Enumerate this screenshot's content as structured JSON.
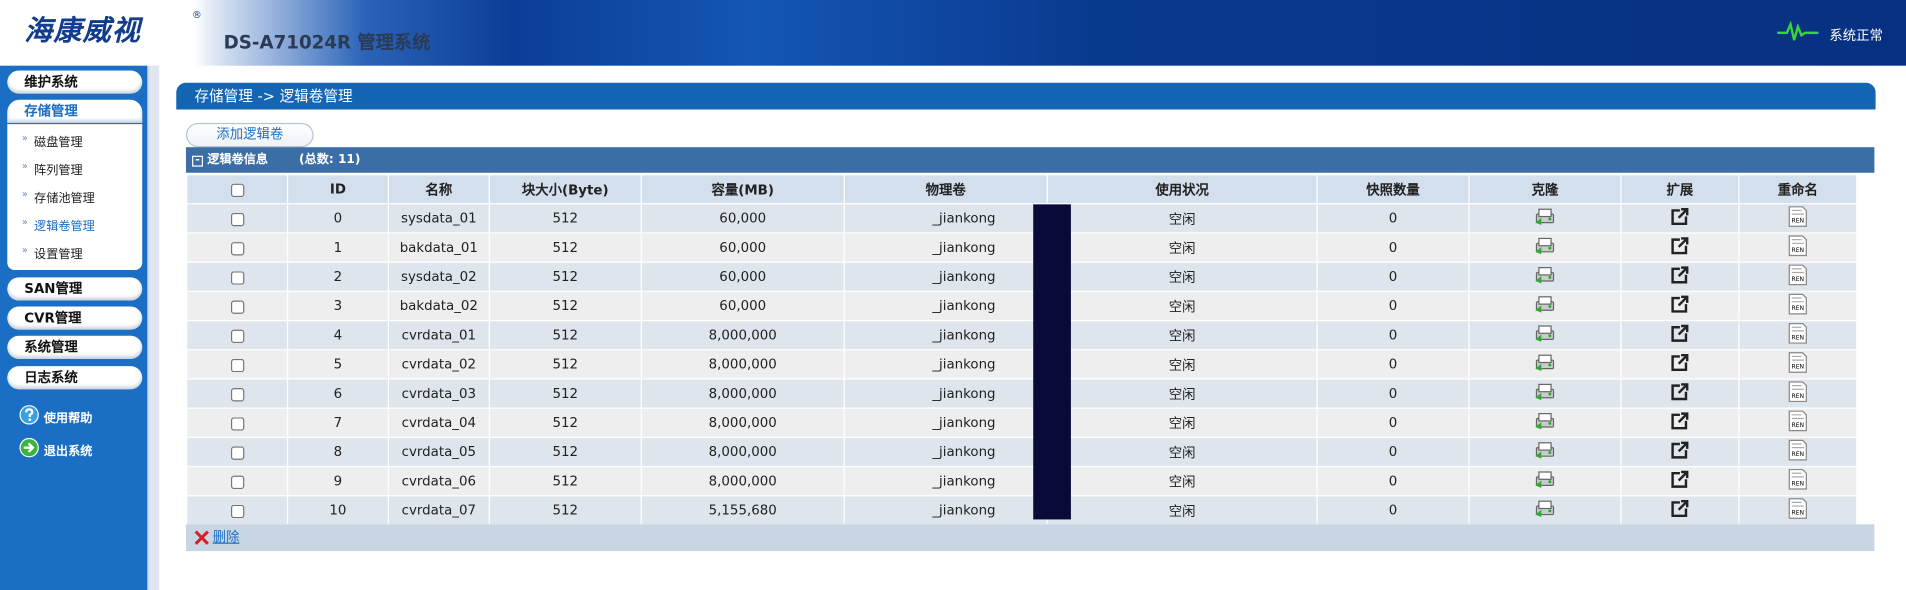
{
  "header": {
    "logo": "海康威视",
    "logo_mark": "®",
    "product": "DS-A71024R 管理系统",
    "status": "系统正常"
  },
  "sidebar": {
    "menu_top": [
      "维护系统",
      "存储管理"
    ],
    "submenu": [
      "磁盘管理",
      "阵列管理",
      "存储池管理",
      "逻辑卷管理",
      "设置管理"
    ],
    "menu_bottom": [
      "SAN管理",
      "CVR管理",
      "系统管理",
      "日志系统"
    ],
    "links": [
      "使用帮助",
      "退出系统"
    ]
  },
  "breadcrumb": "存储管理 -> 逻辑卷管理",
  "add_button": "添加逻辑卷",
  "table": {
    "title": "逻辑卷信息",
    "total": "(总数: 11)",
    "columns": [
      "ID",
      "名称",
      "块大小(Byte)",
      "容量(MB)",
      "物理卷",
      "使用状况",
      "快照数量",
      "克隆",
      "扩展",
      "重命名"
    ],
    "rename_icon": "REN",
    "rows": [
      [
        "0",
        "sysdata_01",
        "512",
        "60,000",
        "_jiankong",
        "空闲",
        "0"
      ],
      [
        "1",
        "bakdata_01",
        "512",
        "60,000",
        "_jiankong",
        "空闲",
        "0"
      ],
      [
        "2",
        "sysdata_02",
        "512",
        "60,000",
        "_jiankong",
        "空闲",
        "0"
      ],
      [
        "3",
        "bakdata_02",
        "512",
        "60,000",
        "_jiankong",
        "空闲",
        "0"
      ],
      [
        "4",
        "cvrdata_01",
        "512",
        "8,000,000",
        "_jiankong",
        "空闲",
        "0"
      ],
      [
        "5",
        "cvrdata_02",
        "512",
        "8,000,000",
        "_jiankong",
        "空闲",
        "0"
      ],
      [
        "6",
        "cvrdata_03",
        "512",
        "8,000,000",
        "_jiankong",
        "空闲",
        "0"
      ],
      [
        "7",
        "cvrdata_04",
        "512",
        "8,000,000",
        "_jiankong",
        "空闲",
        "0"
      ],
      [
        "8",
        "cvrdata_05",
        "512",
        "8,000,000",
        "_jiankong",
        "空闲",
        "0"
      ],
      [
        "9",
        "cvrdata_06",
        "512",
        "8,000,000",
        "_jiankong",
        "空闲",
        "0"
      ],
      [
        "10",
        "cvrdata_07",
        "512",
        "5,155,680",
        "_jiankong",
        "空闲",
        "0"
      ]
    ]
  },
  "delete": "删除"
}
